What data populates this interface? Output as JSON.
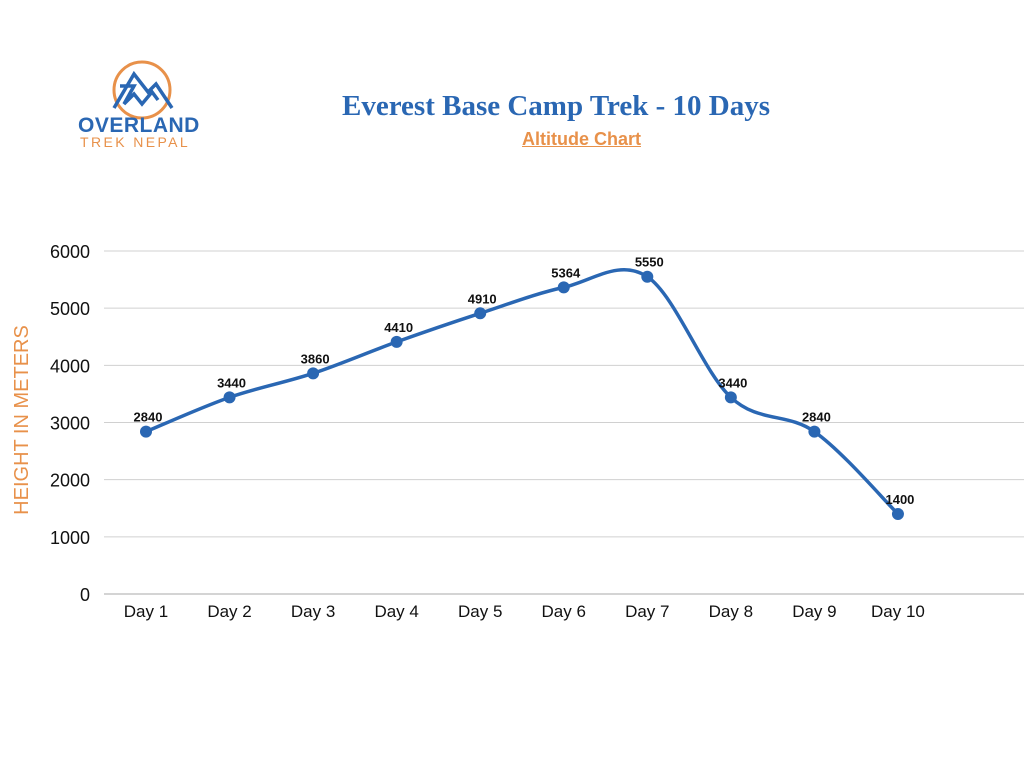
{
  "logo": {
    "name": "OVERLAND",
    "sub": "TREK NEPAL"
  },
  "colors": {
    "line": "#2a67b3",
    "accent": "#e8914a",
    "grid": "#d0d0d0"
  },
  "chart_data": {
    "type": "line",
    "title": "Everest Base Camp Trek - 10 Days",
    "subtitle": "Altitude Chart",
    "xlabel": "",
    "ylabel": "HEIGHT IN METERS",
    "categories": [
      "Day 1",
      "Day 2",
      "Day 3",
      "Day 4",
      "Day 5",
      "Day 6",
      "Day 7",
      "Day 8",
      "Day 9",
      "Day 10"
    ],
    "values": [
      2840,
      3440,
      3860,
      4410,
      4910,
      5364,
      5550,
      3440,
      2840,
      1400
    ],
    "yticks": [
      0,
      1000,
      2000,
      3000,
      4000,
      5000,
      6000
    ],
    "ylim": [
      0,
      6000
    ],
    "grid": true,
    "smooth": true,
    "data_labels": true
  }
}
